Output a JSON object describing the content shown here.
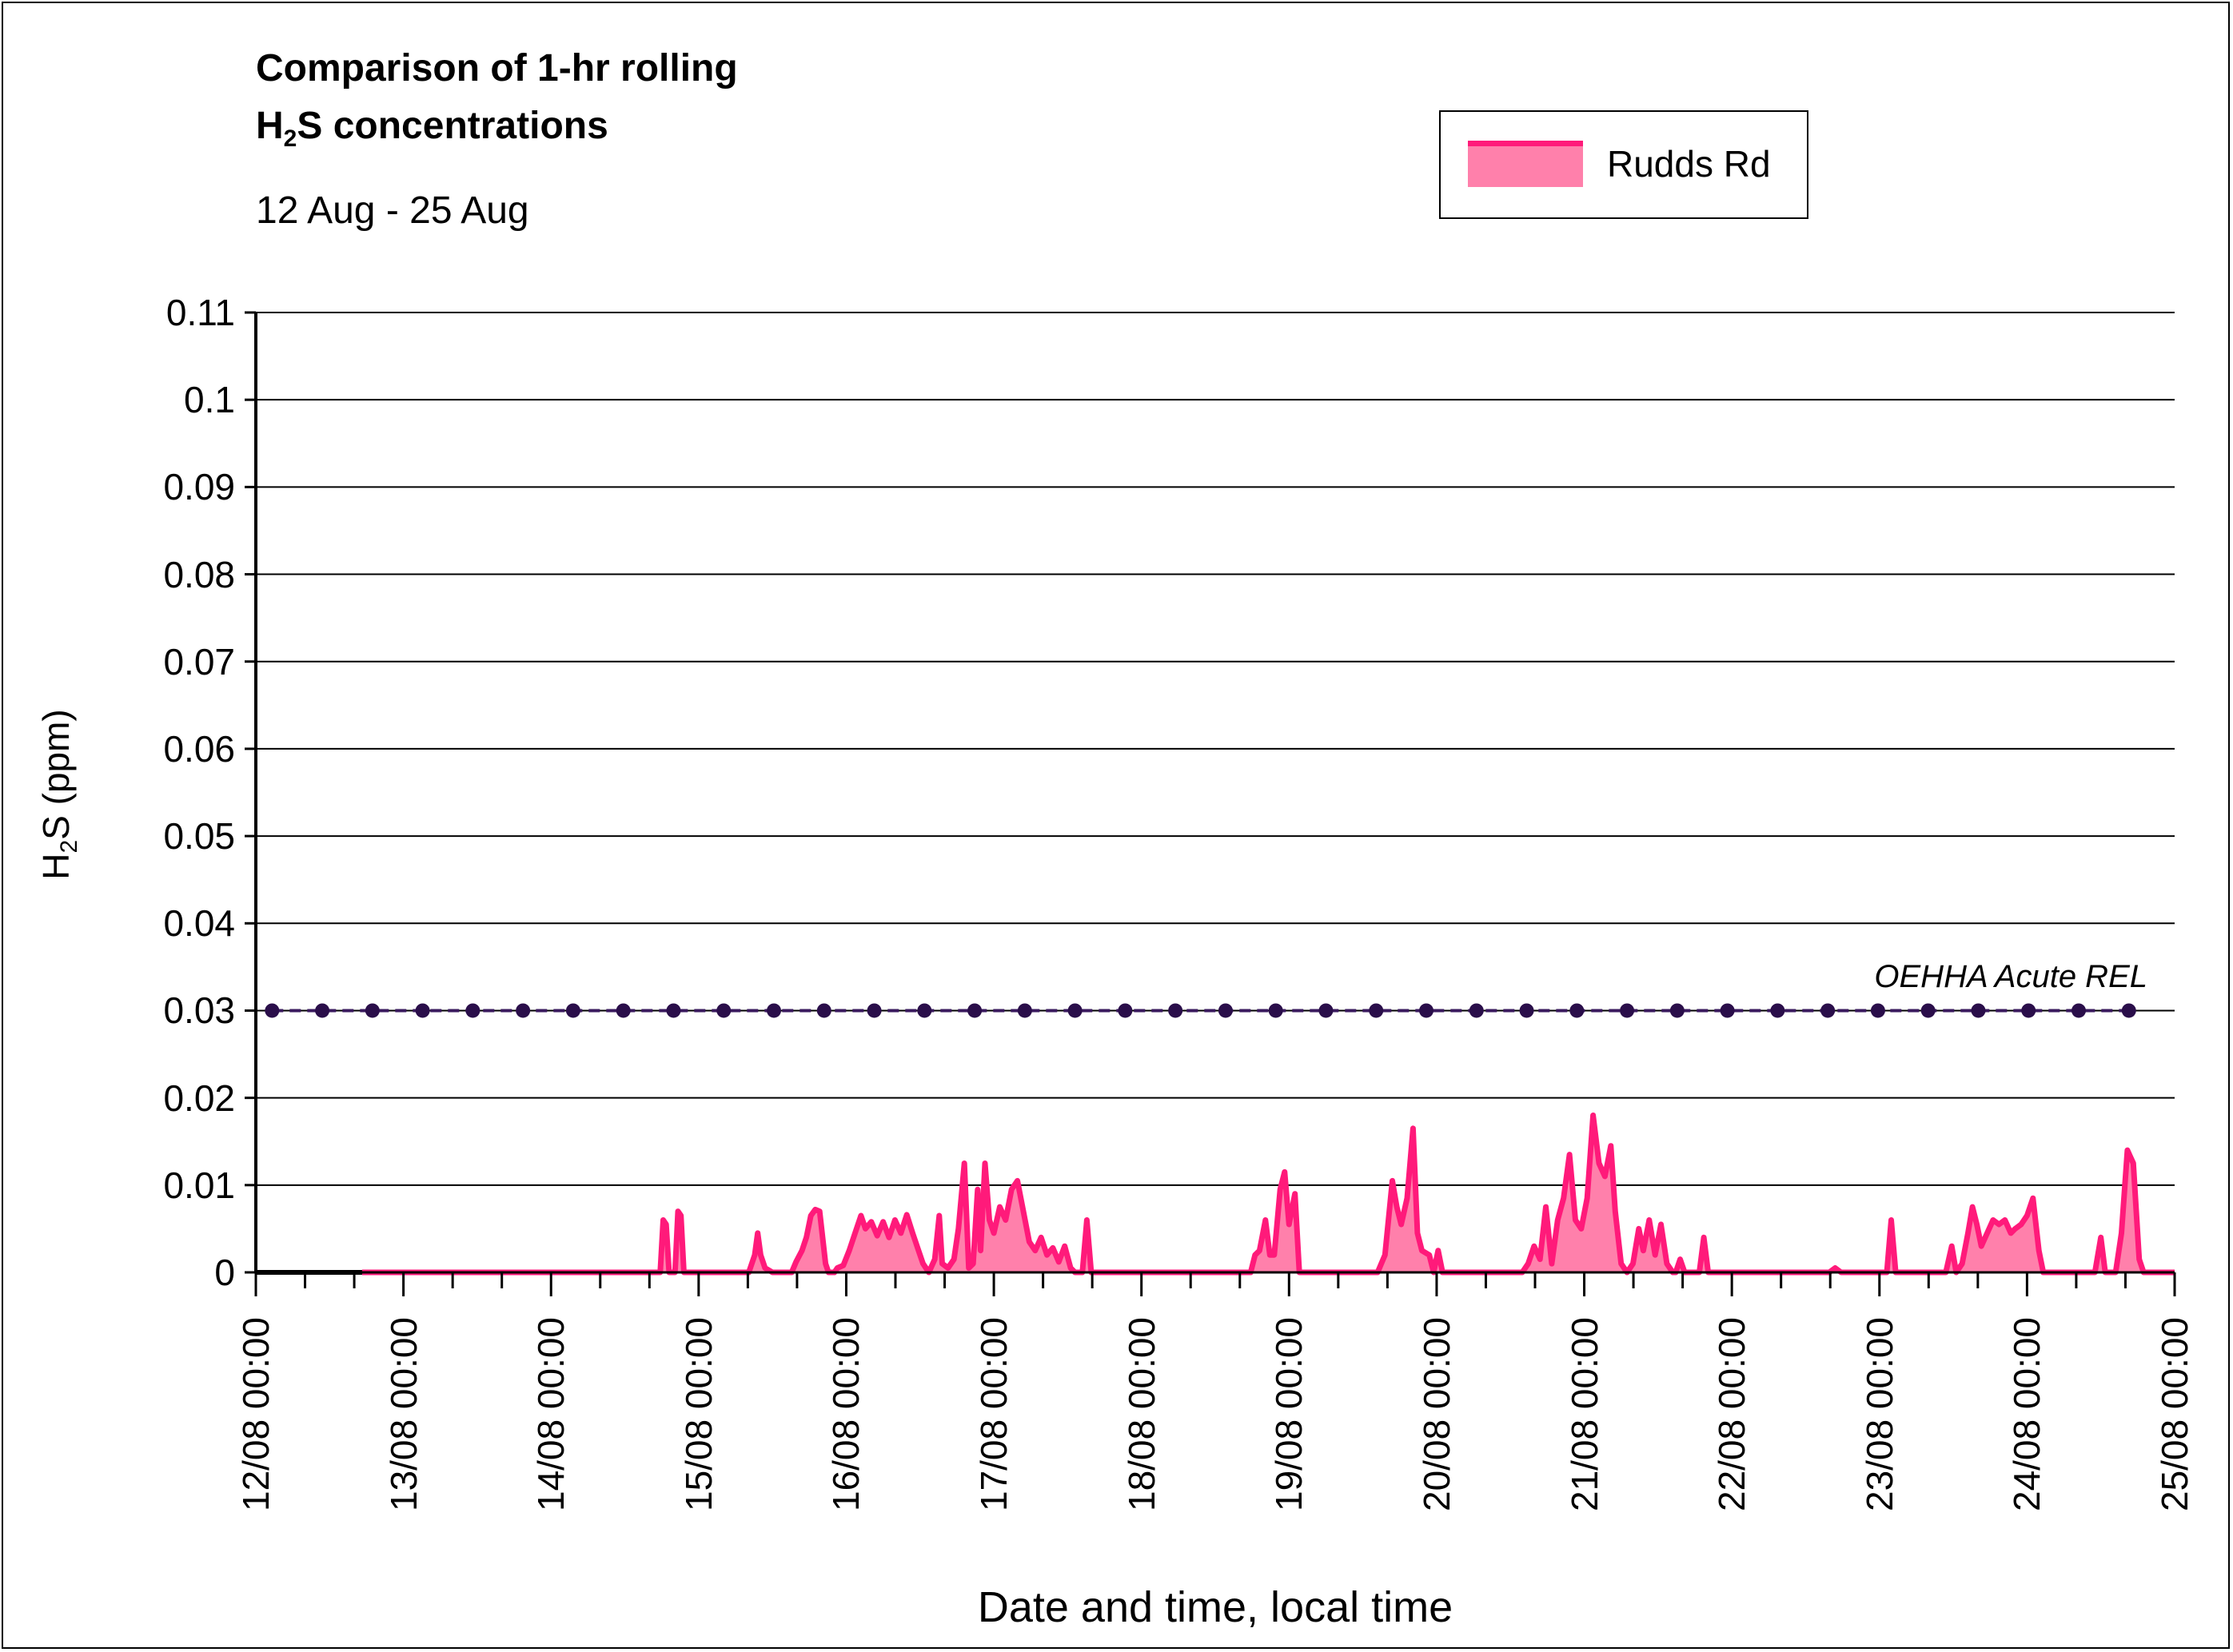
{
  "chart_data": {
    "type": "area",
    "title_line1": "Comparison of 1-hr rolling",
    "title_line2_prefix": "H",
    "title_line2_sub": "2",
    "title_line2_suffix": "S concentrations",
    "subtitle": "12 Aug - 25 Aug",
    "ylabel_prefix": "H",
    "ylabel_sub": "2",
    "ylabel_suffix": "S (ppm)",
    "xlabel": "Date and time, local time",
    "ylim": [
      0,
      0.11
    ],
    "yticks": [
      0,
      0.01,
      0.02,
      0.03,
      0.04,
      0.05,
      0.06,
      0.07,
      0.08,
      0.09,
      0.1,
      0.11
    ],
    "ytick_labels": [
      "0",
      "0.01",
      "0.02",
      "0.03",
      "0.04",
      "0.05",
      "0.06",
      "0.07",
      "0.08",
      "0.09",
      "0.1",
      "0.11"
    ],
    "xlim_days": [
      12,
      25
    ],
    "xtick_labels": [
      "12/08 00:00",
      "13/08 00:00",
      "14/08 00:00",
      "15/08 00:00",
      "16/08 00:00",
      "17/08 00:00",
      "18/08 00:00",
      "19/08 00:00",
      "20/08 00:00",
      "21/08 00:00",
      "22/08 00:00",
      "23/08 00:00",
      "24/08 00:00",
      "25/08 00:00"
    ],
    "grid": true,
    "legend_position": "top-right",
    "series": [
      {
        "name": "Rudds Rd",
        "line_color": "#ff1a7a",
        "fill_color": "#ff80ab",
        "points": [
          [
            12.72,
            0
          ],
          [
            14.74,
            0
          ],
          [
            14.76,
            0.006
          ],
          [
            14.78,
            0.0055
          ],
          [
            14.8,
            0
          ],
          [
            14.84,
            0
          ],
          [
            14.86,
            0.007
          ],
          [
            14.88,
            0.0065
          ],
          [
            14.9,
            0
          ],
          [
            15.34,
            0
          ],
          [
            15.38,
            0.002
          ],
          [
            15.4,
            0.0045
          ],
          [
            15.42,
            0.002
          ],
          [
            15.45,
            0.0005
          ],
          [
            15.5,
            0
          ],
          [
            15.63,
            0
          ],
          [
            15.66,
            0.0012
          ],
          [
            15.7,
            0.0025
          ],
          [
            15.73,
            0.004
          ],
          [
            15.76,
            0.0065
          ],
          [
            15.79,
            0.0072
          ],
          [
            15.82,
            0.007
          ],
          [
            15.86,
            0.001
          ],
          [
            15.88,
            0
          ],
          [
            15.92,
            0
          ],
          [
            15.94,
            0.0005
          ],
          [
            15.98,
            0.0008
          ],
          [
            16.02,
            0.0025
          ],
          [
            16.06,
            0.0045
          ],
          [
            16.1,
            0.0065
          ],
          [
            16.13,
            0.005
          ],
          [
            16.17,
            0.0058
          ],
          [
            16.21,
            0.0042
          ],
          [
            16.25,
            0.0058
          ],
          [
            16.29,
            0.004
          ],
          [
            16.33,
            0.006
          ],
          [
            16.37,
            0.0045
          ],
          [
            16.41,
            0.0066
          ],
          [
            16.45,
            0.0045
          ],
          [
            16.49,
            0.0025
          ],
          [
            16.52,
            0.001
          ],
          [
            16.56,
            0
          ],
          [
            16.6,
            0.0015
          ],
          [
            16.63,
            0.0065
          ],
          [
            16.65,
            0.001
          ],
          [
            16.69,
            0.0005
          ],
          [
            16.73,
            0.0015
          ],
          [
            16.76,
            0.005
          ],
          [
            16.8,
            0.0125
          ],
          [
            16.83,
            0.0005
          ],
          [
            16.86,
            0.001
          ],
          [
            16.89,
            0.0095
          ],
          [
            16.91,
            0.0025
          ],
          [
            16.94,
            0.0125
          ],
          [
            16.97,
            0.006
          ],
          [
            17.0,
            0.0045
          ],
          [
            17.04,
            0.0075
          ],
          [
            17.08,
            0.006
          ],
          [
            17.12,
            0.0095
          ],
          [
            17.16,
            0.0105
          ],
          [
            17.2,
            0.007
          ],
          [
            17.24,
            0.0035
          ],
          [
            17.28,
            0.0025
          ],
          [
            17.32,
            0.004
          ],
          [
            17.36,
            0.002
          ],
          [
            17.4,
            0.0028
          ],
          [
            17.44,
            0.0012
          ],
          [
            17.48,
            0.003
          ],
          [
            17.52,
            0.0005
          ],
          [
            17.55,
            0
          ],
          [
            17.6,
            0
          ],
          [
            17.63,
            0.006
          ],
          [
            17.66,
            0
          ],
          [
            18.74,
            0
          ],
          [
            18.77,
            0.002
          ],
          [
            18.8,
            0.0025
          ],
          [
            18.84,
            0.006
          ],
          [
            18.87,
            0.002
          ],
          [
            18.9,
            0.002
          ],
          [
            18.94,
            0.0095
          ],
          [
            18.97,
            0.0115
          ],
          [
            19.0,
            0.0055
          ],
          [
            19.04,
            0.009
          ],
          [
            19.07,
            0
          ],
          [
            19.6,
            0
          ],
          [
            19.65,
            0.002
          ],
          [
            19.7,
            0.0105
          ],
          [
            19.73,
            0.0075
          ],
          [
            19.76,
            0.0055
          ],
          [
            19.8,
            0.0085
          ],
          [
            19.84,
            0.0165
          ],
          [
            19.87,
            0.0045
          ],
          [
            19.9,
            0.0025
          ],
          [
            19.95,
            0.002
          ],
          [
            19.98,
            0
          ],
          [
            20.01,
            0.0025
          ],
          [
            20.04,
            0
          ],
          [
            20.58,
            0
          ],
          [
            20.62,
            0.001
          ],
          [
            20.66,
            0.003
          ],
          [
            20.7,
            0.0015
          ],
          [
            20.74,
            0.0075
          ],
          [
            20.78,
            0.001
          ],
          [
            20.82,
            0.006
          ],
          [
            20.86,
            0.0085
          ],
          [
            20.9,
            0.0135
          ],
          [
            20.94,
            0.006
          ],
          [
            20.98,
            0.005
          ],
          [
            21.02,
            0.0085
          ],
          [
            21.06,
            0.018
          ],
          [
            21.1,
            0.0125
          ],
          [
            21.14,
            0.011
          ],
          [
            21.18,
            0.0145
          ],
          [
            21.21,
            0.007
          ],
          [
            21.25,
            0.001
          ],
          [
            21.29,
            0
          ],
          [
            21.33,
            0.001
          ],
          [
            21.37,
            0.005
          ],
          [
            21.4,
            0.0025
          ],
          [
            21.44,
            0.006
          ],
          [
            21.48,
            0.002
          ],
          [
            21.52,
            0.0055
          ],
          [
            21.56,
            0.001
          ],
          [
            21.6,
            0
          ],
          [
            21.62,
            0
          ],
          [
            21.65,
            0.0015
          ],
          [
            21.68,
            0
          ],
          [
            21.78,
            0
          ],
          [
            21.81,
            0.004
          ],
          [
            21.84,
            0
          ],
          [
            22.66,
            0
          ],
          [
            22.7,
            0.0005
          ],
          [
            22.74,
            0
          ],
          [
            23.05,
            0
          ],
          [
            23.08,
            0.006
          ],
          [
            23.11,
            0
          ],
          [
            23.45,
            0
          ],
          [
            23.49,
            0.003
          ],
          [
            23.52,
            0
          ],
          [
            23.56,
            0.001
          ],
          [
            23.6,
            0.0045
          ],
          [
            23.63,
            0.0075
          ],
          [
            23.66,
            0.0055
          ],
          [
            23.69,
            0.003
          ],
          [
            23.73,
            0.0045
          ],
          [
            23.77,
            0.006
          ],
          [
            23.81,
            0.0055
          ],
          [
            23.85,
            0.006
          ],
          [
            23.89,
            0.0045
          ],
          [
            23.92,
            0.005
          ],
          [
            23.96,
            0.0055
          ],
          [
            24.0,
            0.0065
          ],
          [
            24.04,
            0.0085
          ],
          [
            24.08,
            0.0025
          ],
          [
            24.11,
            0
          ],
          [
            24.46,
            0
          ],
          [
            24.5,
            0.004
          ],
          [
            24.53,
            0
          ],
          [
            24.6,
            0
          ],
          [
            24.64,
            0.0045
          ],
          [
            24.68,
            0.014
          ],
          [
            24.72,
            0.0125
          ],
          [
            24.76,
            0.0015
          ],
          [
            24.79,
            0
          ],
          [
            25.0,
            0
          ]
        ]
      },
      {
        "name": "OEHHA Acute REL",
        "line_color": "#3a1a5e",
        "marker_color": "#2a0e4a",
        "value": 0.03,
        "x": [
          12.11,
          12.45,
          12.79,
          13.13,
          13.47,
          13.81,
          14.15,
          14.49,
          14.83,
          15.17,
          15.51,
          15.85,
          16.19,
          16.53,
          16.87,
          17.21,
          17.55,
          17.89,
          18.23,
          18.57,
          18.91,
          19.25,
          19.59,
          19.93,
          20.27,
          20.61,
          20.95,
          21.29,
          21.63,
          21.97,
          22.31,
          22.65,
          22.99,
          23.33,
          23.67,
          24.01,
          24.35,
          24.69
        ]
      }
    ],
    "baseline_segment_days": [
      12,
      12.72
    ]
  }
}
